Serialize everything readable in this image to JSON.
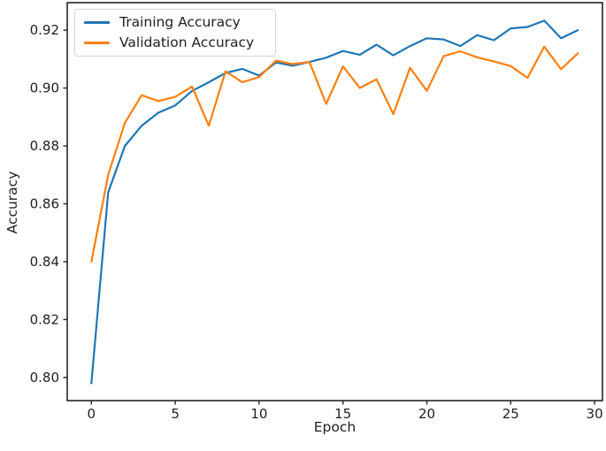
{
  "chart_data": {
    "type": "line",
    "x": [
      0,
      1,
      2,
      3,
      4,
      5,
      6,
      7,
      8,
      9,
      10,
      11,
      12,
      13,
      14,
      15,
      16,
      17,
      18,
      19,
      20,
      21,
      22,
      23,
      24,
      25,
      26,
      27,
      28,
      29
    ],
    "series": [
      {
        "name": "Training Accuracy",
        "color": "#1f77b4",
        "values": [
          0.798,
          0.864,
          0.88,
          0.887,
          0.8915,
          0.894,
          0.899,
          0.902,
          0.9052,
          0.9066,
          0.9043,
          0.9088,
          0.9077,
          0.909,
          0.9105,
          0.9128,
          0.9115,
          0.915,
          0.9113,
          0.9145,
          0.9172,
          0.9168,
          0.9145,
          0.9183,
          0.9165,
          0.9206,
          0.9211,
          0.9233,
          0.9172,
          0.92
        ]
      },
      {
        "name": "Validation Accuracy",
        "color": "#ff7f0e",
        "values": [
          0.84,
          0.87,
          0.888,
          0.8975,
          0.8955,
          0.897,
          0.9005,
          0.887,
          0.9058,
          0.902,
          0.9038,
          0.9095,
          0.9083,
          0.909,
          0.8945,
          0.9075,
          0.9,
          0.903,
          0.891,
          0.907,
          0.899,
          0.911,
          0.9127,
          0.9106,
          0.9092,
          0.9076,
          0.9035,
          0.9143,
          0.9065,
          0.912
        ]
      }
    ],
    "title": "",
    "xlabel": "Epoch",
    "ylabel": "Accuracy",
    "xticks": {
      "values": [
        0,
        5,
        10,
        15,
        20,
        25,
        30
      ],
      "labels": [
        "0",
        "5",
        "10",
        "15",
        "20",
        "25",
        "30"
      ]
    },
    "yticks": {
      "values": [
        0.8,
        0.82,
        0.84,
        0.86,
        0.88,
        0.9,
        0.92
      ],
      "labels": [
        "0.80",
        "0.82",
        "0.84",
        "0.86",
        "0.88",
        "0.90",
        "0.92"
      ]
    },
    "xlim": [
      -1.44,
      30.47
    ],
    "ylim": [
      0.792,
      0.9295
    ],
    "grid": false,
    "legend_position": "upper left"
  },
  "style": {
    "spine_color": "#262626",
    "tick_color": "#262626",
    "text_color": "#1f1f1f",
    "background": "#ffffff"
  }
}
